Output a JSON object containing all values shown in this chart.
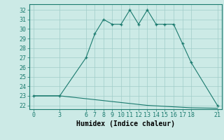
{
  "line1_x": [
    0,
    3,
    6,
    7,
    8,
    9,
    10,
    11,
    12,
    13,
    14,
    15,
    16,
    17,
    18,
    21
  ],
  "line1_y": [
    23,
    23,
    27,
    29.5,
    31,
    30.5,
    30.5,
    32,
    30.5,
    32,
    30.5,
    30.5,
    30.5,
    28.5,
    26.5,
    22
  ],
  "line2_x": [
    0,
    3,
    6,
    7,
    8,
    9,
    10,
    11,
    12,
    13,
    14,
    15,
    16,
    17,
    18,
    21
  ],
  "line2_y": [
    23,
    23,
    22.7,
    22.6,
    22.5,
    22.4,
    22.3,
    22.2,
    22.1,
    22.0,
    21.95,
    21.9,
    21.85,
    21.8,
    21.75,
    21.7
  ],
  "line_color": "#1a7a6e",
  "bg_color": "#cceae6",
  "grid_color": "#a0ccc8",
  "xlabel": "Humidex (Indice chaleur)",
  "xticks": [
    0,
    3,
    6,
    7,
    8,
    9,
    10,
    11,
    12,
    13,
    14,
    15,
    16,
    17,
    18,
    21
  ],
  "yticks": [
    22,
    23,
    24,
    25,
    26,
    27,
    28,
    29,
    30,
    31,
    32
  ],
  "xlim": [
    -0.5,
    21.5
  ],
  "ylim": [
    21.6,
    32.6
  ],
  "xlabel_fontsize": 7,
  "tick_fontsize": 6
}
